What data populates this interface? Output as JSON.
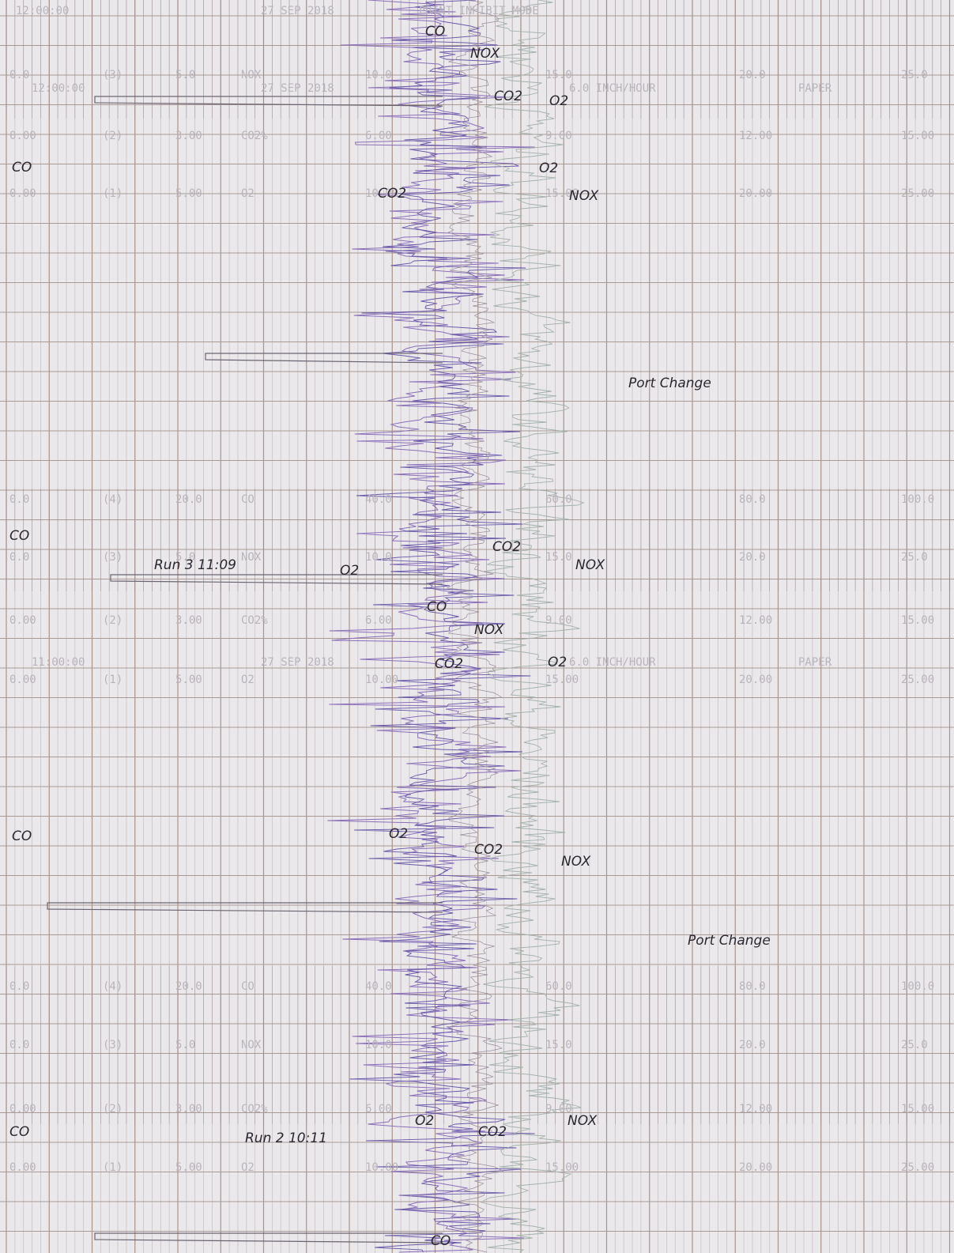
{
  "header": {
    "time": "12:00:00",
    "date": "27 SEP 2018",
    "mode": "PRINT INHIBIT MODE"
  },
  "scale_rows": [
    {
      "labels": [
        "0.0",
        "(3)",
        "5.0",
        "NOX",
        "10.0",
        "15.0",
        "20.0",
        "25.0"
      ]
    },
    {
      "labels": [
        "12:00:00",
        "27 SEP 2018",
        "6.0 INCH/HOUR",
        "PAPER"
      ]
    },
    {
      "labels": [
        "0.00",
        "(2)",
        "3.00",
        "CO2%",
        "6.00",
        "9.00",
        "12.00",
        "15.00"
      ]
    },
    {
      "labels": [
        "0.00",
        "(1)",
        "5.00",
        "O2",
        "10.00",
        "15.00",
        "20.00",
        "25.00"
      ]
    },
    {
      "labels": [
        "0.0",
        "(4)",
        "20.0",
        "CO",
        "40.0",
        "60.0",
        "80.0",
        "100.0"
      ]
    },
    {
      "labels": [
        "0.0",
        "(3)",
        "5.0",
        "NOX",
        "10.0",
        "15.0",
        "20.0",
        "25.0"
      ]
    },
    {
      "labels": [
        "0.00",
        "(2)",
        "3.00",
        "CO2%",
        "6.00",
        "9.00",
        "12.00",
        "15.00"
      ]
    },
    {
      "labels": [
        "11:00:00",
        "27 SEP 2018",
        "6.0 INCH/HOUR",
        "PAPER"
      ]
    },
    {
      "labels": [
        "0.00",
        "(1)",
        "5.00",
        "O2",
        "10.00",
        "15.00",
        "20.00",
        "25.00"
      ]
    },
    {
      "labels": [
        "0.0",
        "(4)",
        "20.0",
        "CO",
        "40.0",
        "60.0",
        "80.0",
        "100.0"
      ]
    },
    {
      "labels": [
        "0.0",
        "(3)",
        "5.0",
        "NOX",
        "10.0",
        "15.0",
        "20.0",
        "25.0"
      ]
    },
    {
      "labels": [
        "0.00",
        "(2)",
        "3.00",
        "CO2%",
        "6.00",
        "9.00",
        "12.00",
        "15.00"
      ]
    },
    {
      "labels": [
        "0.00",
        "(1)",
        "5.00",
        "O2",
        "10.00",
        "15.00",
        "20.00",
        "25.00"
      ]
    }
  ],
  "annotations": [
    {
      "text": "CO"
    },
    {
      "text": "NOX"
    },
    {
      "text": "CO2"
    },
    {
      "text": "O2"
    },
    {
      "text": "CO"
    },
    {
      "text": "O2"
    },
    {
      "text": "CO2"
    },
    {
      "text": "NOX"
    },
    {
      "text": "Port Change"
    },
    {
      "text": "CO"
    },
    {
      "text": "CO2"
    },
    {
      "text": "Run 3  11:09"
    },
    {
      "text": "O2"
    },
    {
      "text": "NOX"
    },
    {
      "text": "CO"
    },
    {
      "text": "NOX"
    },
    {
      "text": "CO2"
    },
    {
      "text": "O2"
    },
    {
      "text": "CO"
    },
    {
      "text": "O2"
    },
    {
      "text": "CO2"
    },
    {
      "text": "NOX"
    },
    {
      "text": "Port Change"
    },
    {
      "text": "CO"
    },
    {
      "text": "Run 2  10:11"
    },
    {
      "text": "O2"
    },
    {
      "text": "CO2"
    },
    {
      "text": "NOX"
    },
    {
      "text": "CO"
    }
  ]
}
